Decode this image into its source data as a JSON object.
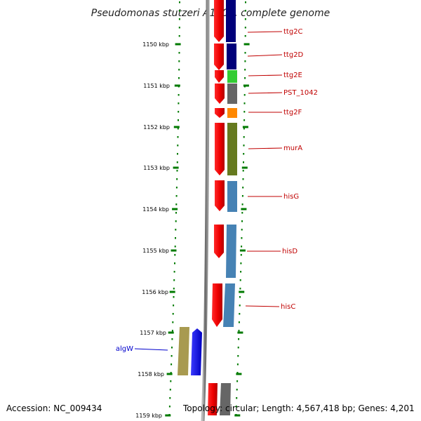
{
  "title": "Pseudomonas stutzeri A1501, complete genome",
  "footer": {
    "accession": "Accession: NC_009434",
    "summary": "Topology: circular; Length: 4,567,418 bp; Genes: 4,201"
  },
  "ticks": [
    "1150 kbp",
    "1151 kbp",
    "1152 kbp",
    "1153 kbp",
    "1154 kbp",
    "1155 kbp",
    "1156 kbp",
    "1157 kbp",
    "1158 kbp",
    "1159 kbp"
  ],
  "genes": [
    {
      "label": "ttg2C",
      "strand": "+",
      "cog_color": "#00007a"
    },
    {
      "label": "ttg2D",
      "strand": "+",
      "cog_color": "#00007a"
    },
    {
      "label": "ttg2E",
      "strand": "+",
      "cog_color": "#33cc33"
    },
    {
      "label": "PST_1042",
      "strand": "+",
      "cog_color": "#666666"
    },
    {
      "label": "ttg2F",
      "strand": "+",
      "cog_color": "#ff8800"
    },
    {
      "label": "murA",
      "strand": "+",
      "cog_color": "#667a1f"
    },
    {
      "label": "hisG",
      "strand": "+",
      "cog_color": "#4682b4"
    },
    {
      "label": "hisD",
      "strand": "+",
      "cog_color": "#4682b4"
    },
    {
      "label": "hisC",
      "strand": "+",
      "cog_color": "#4682b4"
    },
    {
      "label": "algW",
      "strand": "-",
      "cog_color": "#a89a50"
    }
  ],
  "colors": {
    "forward_gene": "#ff0000",
    "reverse_gene": "#0000ff",
    "tick": "#007a00",
    "backbone": "#777777",
    "forward_label": "#c00000",
    "reverse_label": "#0000cc"
  }
}
